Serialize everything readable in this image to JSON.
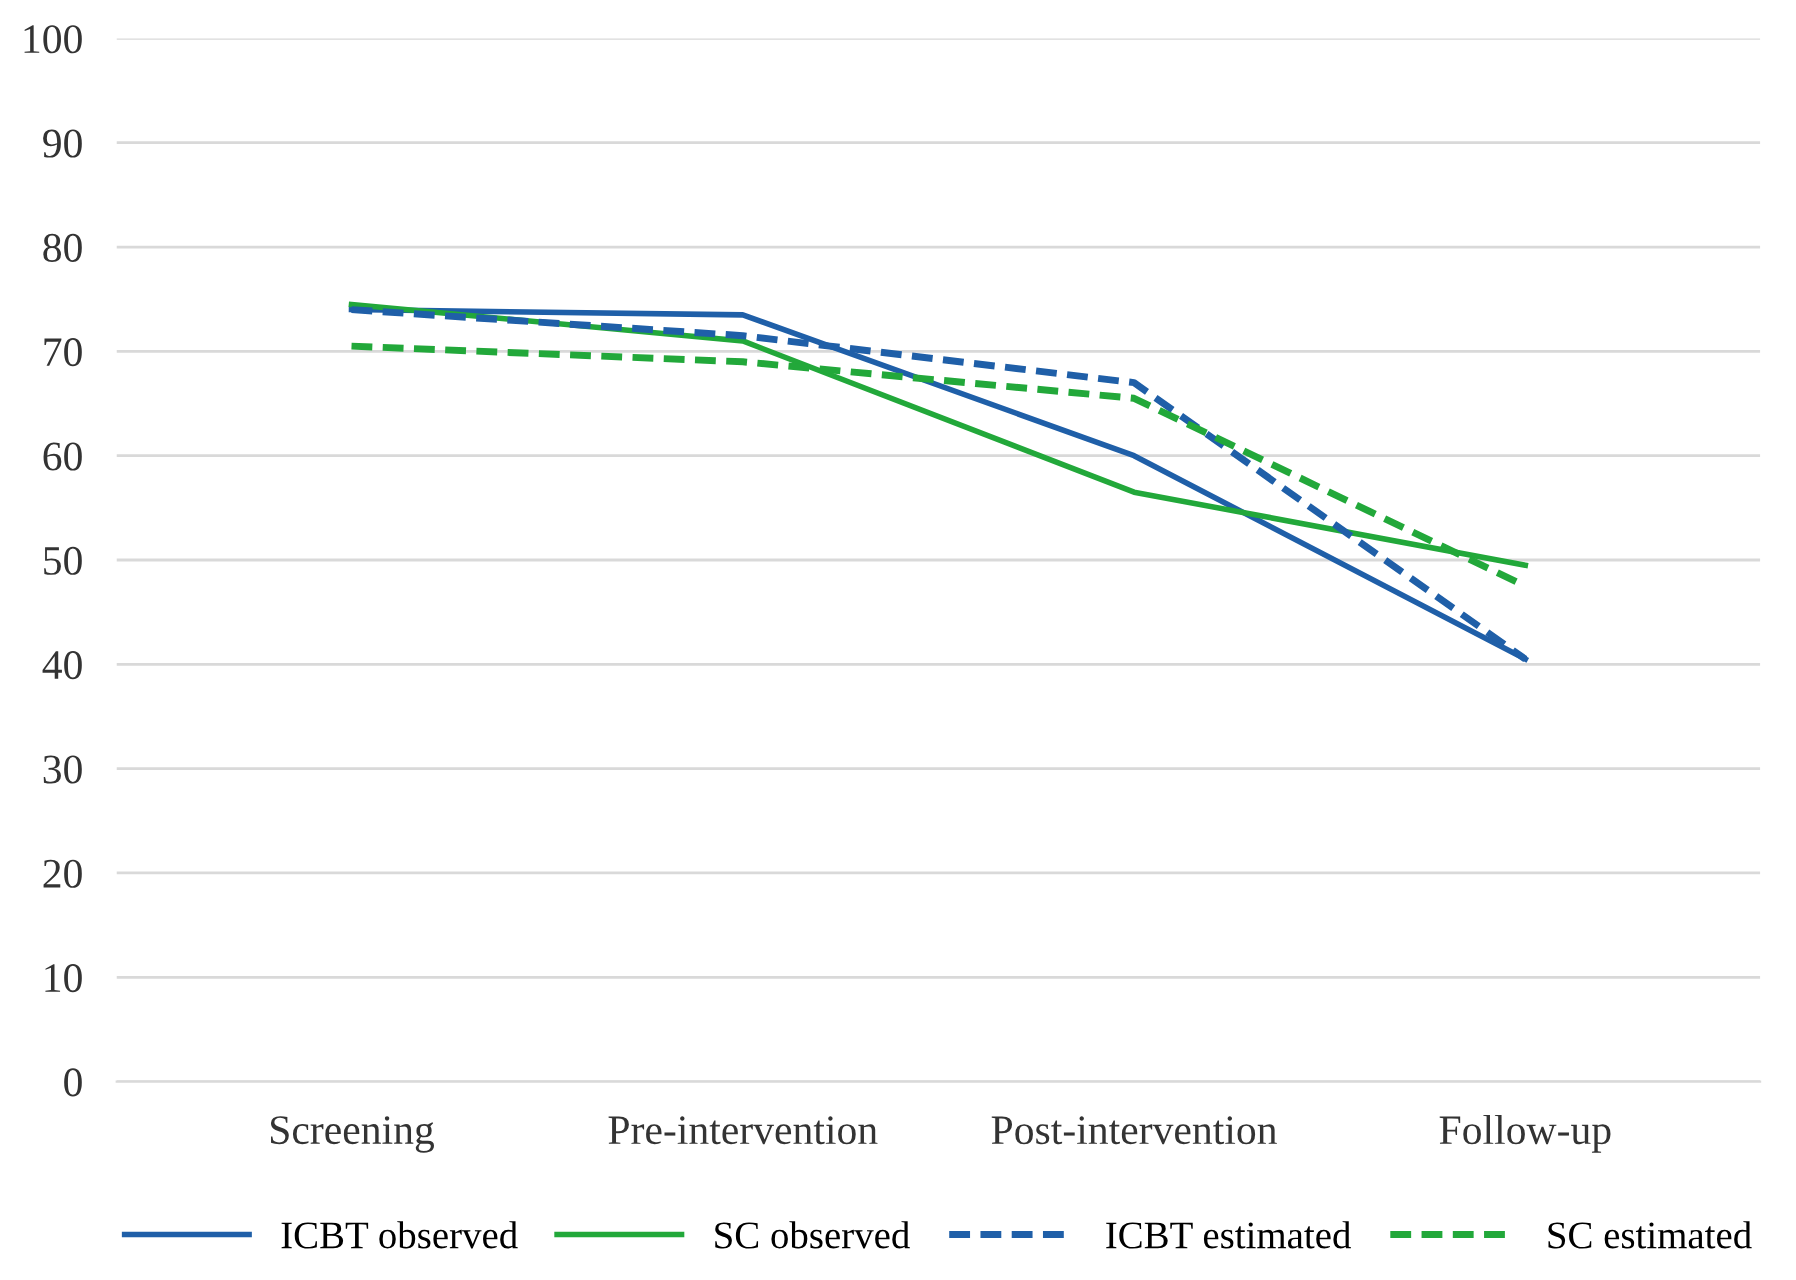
{
  "chart_data": {
    "type": "line",
    "categories": [
      "Screening",
      "Pre-intervention",
      "Post-intervention",
      "Follow-up"
    ],
    "series": [
      {
        "name": "ICBT observed",
        "color": "#1f5fa8",
        "line_style": "solid",
        "values": [
          74,
          73.5,
          60,
          40.5
        ]
      },
      {
        "name": "SC observed",
        "color": "#22a83a",
        "line_style": "solid",
        "values": [
          74.5,
          71,
          56.5,
          49.5
        ]
      },
      {
        "name": "ICBT estimated",
        "color": "#1f5fa8",
        "line_style": "dashed",
        "values": [
          74,
          71.5,
          67,
          40.5
        ]
      },
      {
        "name": "SC estimated",
        "color": "#22a83a",
        "line_style": "dashed",
        "values": [
          70.5,
          69,
          65.5,
          47.5
        ]
      }
    ],
    "ylim": [
      0,
      100
    ],
    "yticks": [
      0,
      10,
      20,
      30,
      40,
      50,
      60,
      70,
      80,
      90,
      100
    ],
    "grid": "y",
    "legend": "bottom",
    "marker": "none"
  }
}
